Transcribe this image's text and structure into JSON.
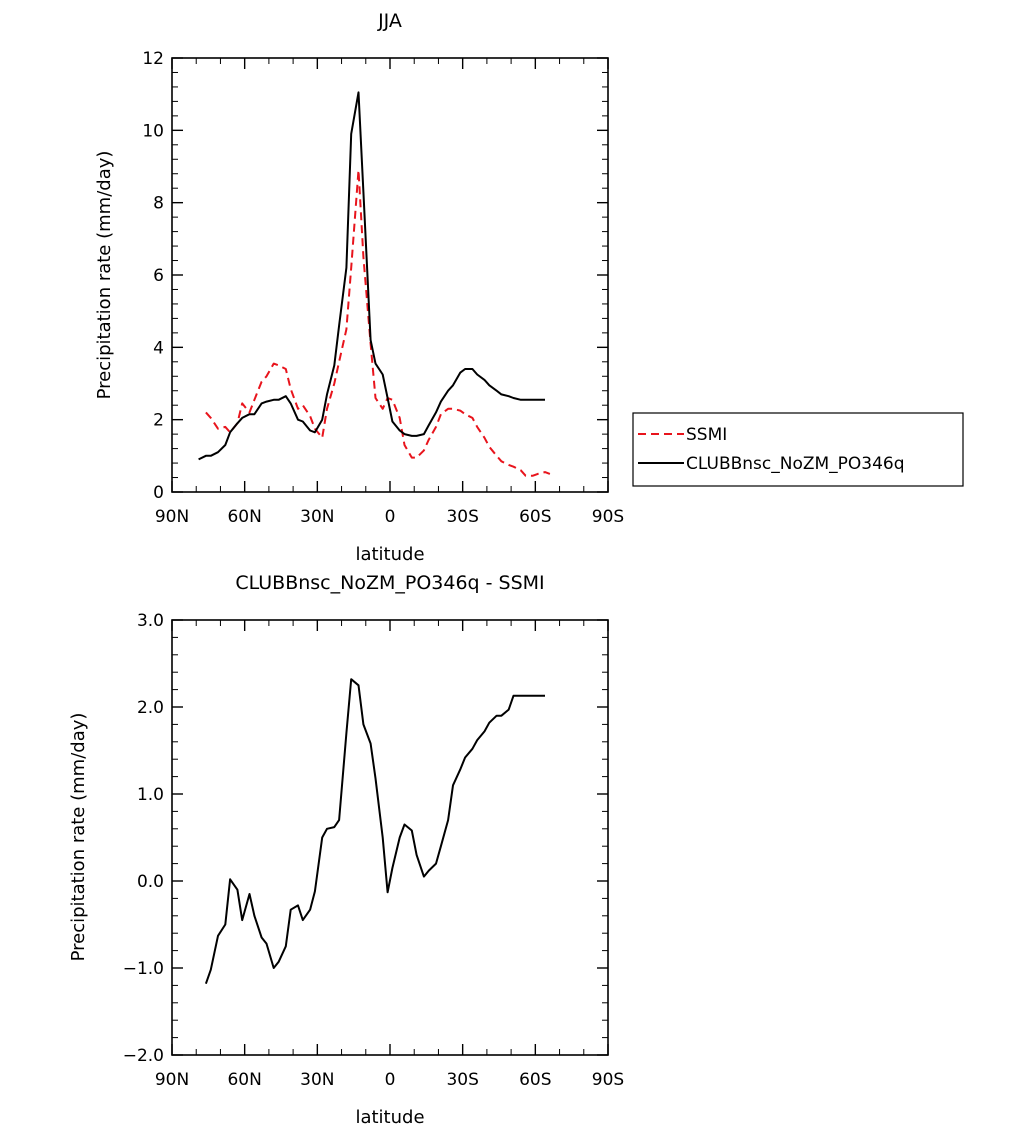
{
  "chart_data": [
    {
      "type": "line",
      "title": "JJA",
      "xlabel": "latitude",
      "ylabel": "Precipitation rate (mm/day)",
      "xlim": [
        90,
        -90
      ],
      "ylim": [
        0,
        12
      ],
      "x_ticks": [
        90,
        60,
        30,
        0,
        -30,
        -60,
        -90
      ],
      "x_tick_labels": [
        "90N",
        "60N",
        "30N",
        "0",
        "30S",
        "60S",
        "90S"
      ],
      "y_ticks": [
        0,
        2,
        4,
        6,
        8,
        10,
        12
      ],
      "y_tick_labels": [
        "0",
        "2",
        "4",
        "6",
        "8",
        "10",
        "12"
      ],
      "legend_position": "right",
      "series": [
        {
          "name": "SSMI",
          "color": "#e8141c",
          "dash": "dashed",
          "x": [
            76,
            74,
            71,
            68,
            66,
            63,
            61,
            58,
            56,
            53,
            51,
            48,
            46,
            43,
            41,
            38,
            36,
            33,
            31,
            28,
            26,
            23,
            21,
            18,
            16,
            13,
            11,
            8,
            6,
            3,
            1,
            -1,
            -4,
            -6,
            -9,
            -11,
            -14,
            -16,
            -19,
            -21,
            -24,
            -26,
            -29,
            -31,
            -34,
            -36,
            -39,
            -41,
            -44,
            -46,
            -49,
            -51,
            -54,
            -56,
            -59,
            -61,
            -64,
            -66
          ],
          "y": [
            2.2,
            2.05,
            1.75,
            1.8,
            1.65,
            1.9,
            2.45,
            2.2,
            2.55,
            3.05,
            3.2,
            3.55,
            3.5,
            3.4,
            2.85,
            2.3,
            2.4,
            2.1,
            1.75,
            1.5,
            2.3,
            3.0,
            3.6,
            4.5,
            6.2,
            8.9,
            6.5,
            4.1,
            2.6,
            2.3,
            2.6,
            2.55,
            2.05,
            1.3,
            0.95,
            0.95,
            1.15,
            1.45,
            1.8,
            2.15,
            2.3,
            2.3,
            2.25,
            2.15,
            2.05,
            1.8,
            1.5,
            1.25,
            1.0,
            0.85,
            0.75,
            0.7,
            0.6,
            0.45,
            0.45,
            0.5,
            0.55,
            0.5
          ]
        },
        {
          "name": "CLUBBnsc_NoZM_PO346q",
          "color": "#000000",
          "dash": "solid",
          "x": [
            79,
            76,
            74,
            71,
            68,
            66,
            63,
            61,
            58,
            56,
            53,
            51,
            48,
            46,
            43,
            41,
            38,
            36,
            33,
            31,
            28,
            26,
            23,
            21,
            18,
            16,
            13,
            11,
            8,
            6,
            3,
            1,
            -1,
            -4,
            -6,
            -9,
            -11,
            -14,
            -16,
            -19,
            -21,
            -24,
            -26,
            -29,
            -31,
            -34,
            -36,
            -39,
            -41,
            -44,
            -46,
            -49,
            -51,
            -54,
            -56,
            -59,
            -61,
            -64
          ],
          "y": [
            0.9,
            1.0,
            1.0,
            1.1,
            1.3,
            1.65,
            1.9,
            2.05,
            2.15,
            2.15,
            2.45,
            2.5,
            2.55,
            2.55,
            2.65,
            2.45,
            2.0,
            1.95,
            1.7,
            1.65,
            2.0,
            2.7,
            3.5,
            4.6,
            6.2,
            9.9,
            11.05,
            8.3,
            4.2,
            3.55,
            3.25,
            2.6,
            1.95,
            1.7,
            1.6,
            1.55,
            1.55,
            1.6,
            1.85,
            2.2,
            2.5,
            2.8,
            2.95,
            3.3,
            3.4,
            3.4,
            3.25,
            3.1,
            2.95,
            2.8,
            2.7,
            2.65,
            2.6,
            2.55,
            2.55,
            2.55,
            2.55,
            2.55
          ]
        }
      ]
    },
    {
      "type": "line",
      "title": "CLUBBnsc_NoZM_PO346q - SSMI",
      "xlabel": "latitude",
      "ylabel": "Precipitation rate (mm/day)",
      "xlim": [
        90,
        -90
      ],
      "ylim": [
        -2,
        3
      ],
      "x_ticks": [
        90,
        60,
        30,
        0,
        -30,
        -60,
        -90
      ],
      "x_tick_labels": [
        "90N",
        "60N",
        "30N",
        "0",
        "30S",
        "60S",
        "90S"
      ],
      "y_ticks": [
        -2,
        -1,
        0,
        1,
        2,
        3
      ],
      "y_tick_labels": [
        "−2.0",
        "−1.0",
        "0.0",
        "1.0",
        "2.0",
        "3.0"
      ],
      "series": [
        {
          "color": "#000000",
          "dash": "solid",
          "x": [
            76,
            74,
            71,
            68,
            66,
            63,
            61,
            58,
            56,
            53,
            51,
            48,
            46,
            43,
            41,
            38,
            36,
            33,
            31,
            28,
            26,
            23,
            21,
            18,
            16,
            13,
            11,
            8,
            6,
            3,
            1,
            -1,
            -4,
            -6,
            -9,
            -11,
            -14,
            -16,
            -19,
            -21,
            -24,
            -26,
            -29,
            -31,
            -34,
            -36,
            -39,
            -41,
            -44,
            -46,
            -49,
            -51,
            -54,
            -56,
            -59,
            -61,
            -64
          ],
          "y": [
            -1.18,
            -1.02,
            -0.63,
            -0.5,
            0.02,
            -0.1,
            -0.45,
            -0.15,
            -0.4,
            -0.65,
            -0.72,
            -1.0,
            -0.93,
            -0.75,
            -0.33,
            -0.28,
            -0.45,
            -0.33,
            -0.12,
            0.5,
            0.6,
            0.62,
            0.7,
            1.7,
            2.32,
            2.25,
            1.8,
            1.58,
            1.18,
            0.5,
            -0.13,
            0.15,
            0.5,
            0.65,
            0.58,
            0.3,
            0.05,
            0.12,
            0.2,
            0.4,
            0.7,
            1.1,
            1.28,
            1.42,
            1.52,
            1.62,
            1.72,
            1.82,
            1.9,
            1.9,
            1.97,
            2.13,
            2.13,
            2.13,
            2.13,
            2.13,
            2.13
          ]
        }
      ]
    }
  ]
}
